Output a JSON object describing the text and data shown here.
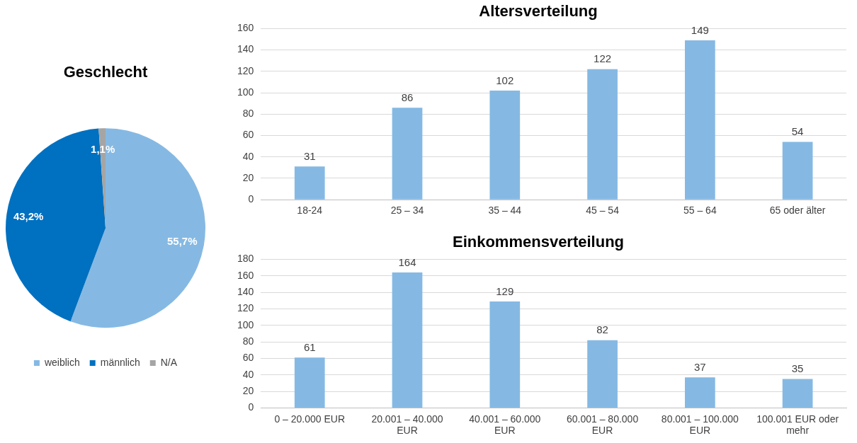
{
  "chart_data": [
    {
      "type": "pie",
      "title": "Geschlecht",
      "categories": [
        "weiblich",
        "männlich",
        "N/A"
      ],
      "values": [
        55.7,
        43.2,
        1.1
      ],
      "colors": [
        "#85b9e3",
        "#0070c0",
        "#a5a5a5"
      ],
      "value_labels": [
        "55,7%",
        "43,2%",
        "1,1%"
      ],
      "legend": "bottom"
    },
    {
      "type": "bar",
      "title": "Altersverteilung",
      "categories": [
        "18-24",
        "25 – 34",
        "35 – 44",
        "45 – 54",
        "55 – 64",
        "65 oder älter"
      ],
      "values": [
        31,
        86,
        102,
        122,
        149,
        54
      ],
      "color": "#85b9e3",
      "ylim": [
        0,
        160
      ],
      "yticks": [
        0,
        20,
        40,
        60,
        80,
        100,
        120,
        140,
        160
      ],
      "grid": "y",
      "data_labels": true
    },
    {
      "type": "bar",
      "title": "Einkommensverteilung",
      "categories": [
        "0 – 20.000 EUR",
        "20.001 – 40.000 EUR",
        "40.001 – 60.000 EUR",
        "60.001 – 80.000 EUR",
        "80.001 – 100.000 EUR",
        "100.001 EUR oder mehr"
      ],
      "values": [
        61,
        164,
        129,
        82,
        37,
        35
      ],
      "color": "#85b9e3",
      "ylim": [
        0,
        180
      ],
      "yticks": [
        0,
        20,
        40,
        60,
        80,
        100,
        120,
        140,
        160,
        180
      ],
      "grid": "y",
      "data_labels": true
    }
  ]
}
